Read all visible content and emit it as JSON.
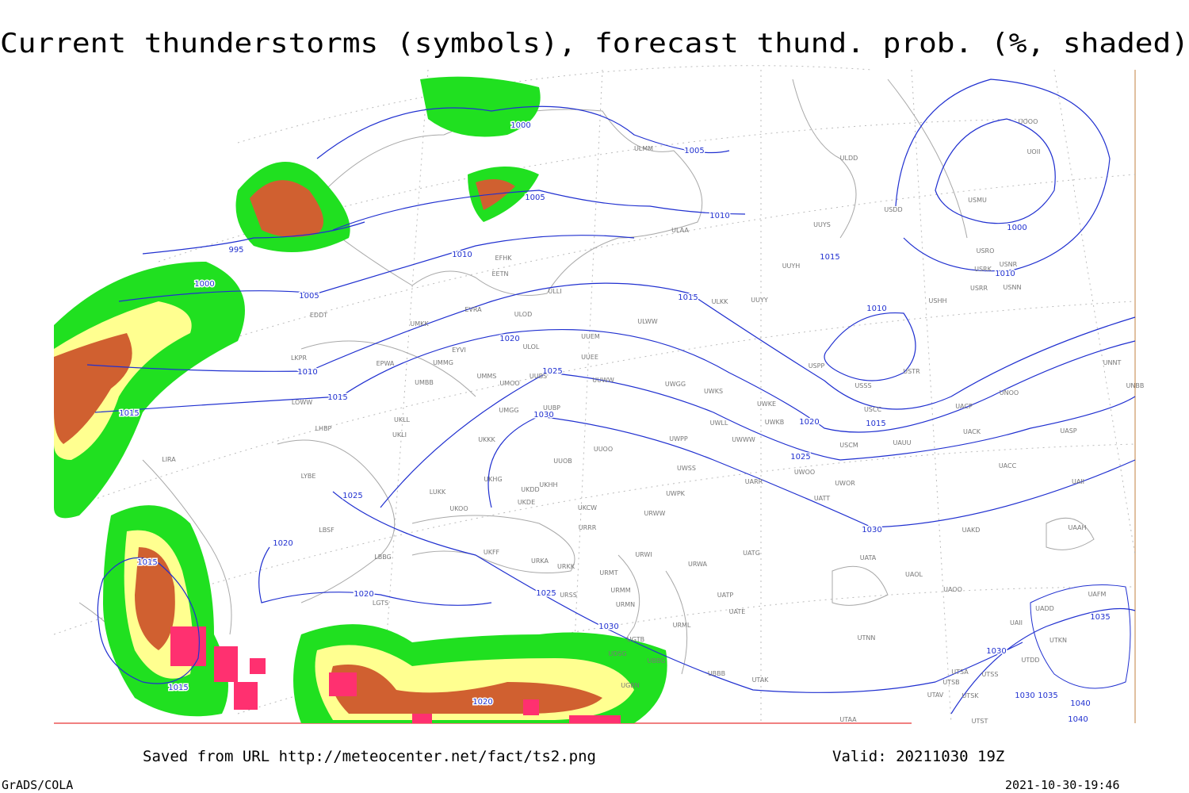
{
  "header": {
    "title": "Current thunderstorms (symbols), forecast thund. prob. (%, shaded)"
  },
  "isobars": {
    "labels": [
      "1000",
      "1005",
      "1005",
      "1010",
      "995",
      "1000",
      "1005",
      "1010",
      "1015",
      "1000",
      "1010",
      "1015",
      "1010",
      "1020",
      "1010",
      "1025",
      "1015",
      "1015",
      "1030",
      "1020",
      "1015",
      "1025",
      "1025",
      "1030",
      "1020",
      "1015",
      "1020",
      "1025",
      "1030",
      "1035",
      "1030",
      "1015",
      "1020",
      "1030",
      "1035",
      "1040",
      "1040"
    ]
  },
  "stations": [
    "ULMM",
    "ULDD",
    "UOOO",
    "UOII",
    "USMU",
    "USDD",
    "UUYS",
    "ULAA",
    "EFHK",
    "USRO",
    "USRK",
    "USNR",
    "UUYH",
    "EETN",
    "USRR",
    "USNN",
    "ULLI",
    "ULKK",
    "UUYY",
    "USHH",
    "EVRA",
    "EDDT",
    "ULOD",
    "ULWW",
    "UMKK",
    "UUEM",
    "ULOL",
    "EYVI",
    "LKPR",
    "UUEE",
    "EPWA",
    "UMMG",
    "USPP",
    "USTR",
    "UNNT",
    "UMMS",
    "UUBS",
    "UUWW",
    "UMBB",
    "UMOO",
    "UWGG",
    "UWKS",
    "UNBB",
    "USSS",
    "LOWW",
    "UWKE",
    "UNOO",
    "UACP",
    "USCC",
    "UMGG",
    "UUBP",
    "UKLL",
    "UWKB",
    "UWLL",
    "UACK",
    "UASP",
    "LHBP",
    "UKLI",
    "UKKK",
    "UWPP",
    "UWWW",
    "USCM",
    "UAUU",
    "UUOO",
    "LIRA",
    "UUOB",
    "UWSS",
    "UACC",
    "LYBE",
    "UWOO",
    "UAII",
    "UKHH",
    "UKHG",
    "UKDD",
    "UWOR",
    "UARR",
    "LUKK",
    "UWPK",
    "UKDE",
    "UATT",
    "UKOO",
    "UKCW",
    "URWW",
    "LBSF",
    "URRR",
    "UAKD",
    "UAAH",
    "UKFF",
    "UATG",
    "LBBG",
    "URWI",
    "UATA",
    "URKA",
    "URKK",
    "URWA",
    "URMT",
    "UAOL",
    "UAOO",
    "URMM",
    "URSS",
    "UATP",
    "URMN",
    "UADD",
    "LGTS",
    "UATE",
    "URML",
    "UAII",
    "UAFM",
    "UGTB",
    "UTNN",
    "UTKN",
    "UDSG",
    "UBBG",
    "UTDD",
    "UBBB",
    "UTSA",
    "UTSS",
    "UTAK",
    "UTSB",
    "UGBN",
    "UTAV",
    "UTSK",
    "UTAA",
    "UTST"
  ],
  "footer": {
    "source": "Saved from URL http://meteocenter.net/fact/ts2.png",
    "valid": "Valid: 20211030 19Z",
    "software": "GrADS/COLA",
    "timestamp": "2021-10-30-19:46"
  }
}
